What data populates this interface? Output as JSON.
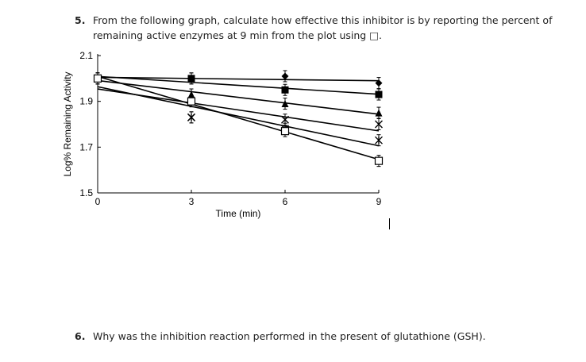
{
  "questions": [
    {
      "number": "5.",
      "text": "From the following graph, calculate how effective this inhibitor is by reporting the percent of remaining active enzymes at 9 min from the plot using □."
    },
    {
      "number": "6.",
      "text": "Why was the inhibition reaction performed in the present of glutathione (GSH)."
    }
  ],
  "chart_data": {
    "type": "scatter",
    "title": "",
    "xlabel": "Time (min)",
    "ylabel": "Log% Remaining Activity",
    "xlim": [
      0,
      9
    ],
    "ylim": [
      1.5,
      2.1
    ],
    "x": [
      0,
      3,
      6,
      9
    ],
    "xticks": [
      "0",
      "3",
      "6",
      "9"
    ],
    "yticks": [
      "1.5",
      "1.7",
      "1.9",
      "2.1"
    ],
    "grid": false,
    "trendlines": true,
    "series": [
      {
        "marker": "diamond",
        "values": [
          2.0,
          2.0,
          2.01,
          1.98
        ]
      },
      {
        "marker": "filled-square",
        "values": [
          2.0,
          2.0,
          1.95,
          1.93
        ]
      },
      {
        "marker": "triangle",
        "values": [
          2.0,
          1.93,
          1.89,
          1.85
        ]
      },
      {
        "marker": "x",
        "values": [
          2.0,
          1.83,
          1.82,
          1.8
        ]
      },
      {
        "marker": "asterisk",
        "values": [
          2.0,
          1.83,
          1.78,
          1.73
        ]
      },
      {
        "marker": "open-square",
        "values": [
          2.0,
          1.9,
          1.77,
          1.64
        ]
      }
    ]
  }
}
